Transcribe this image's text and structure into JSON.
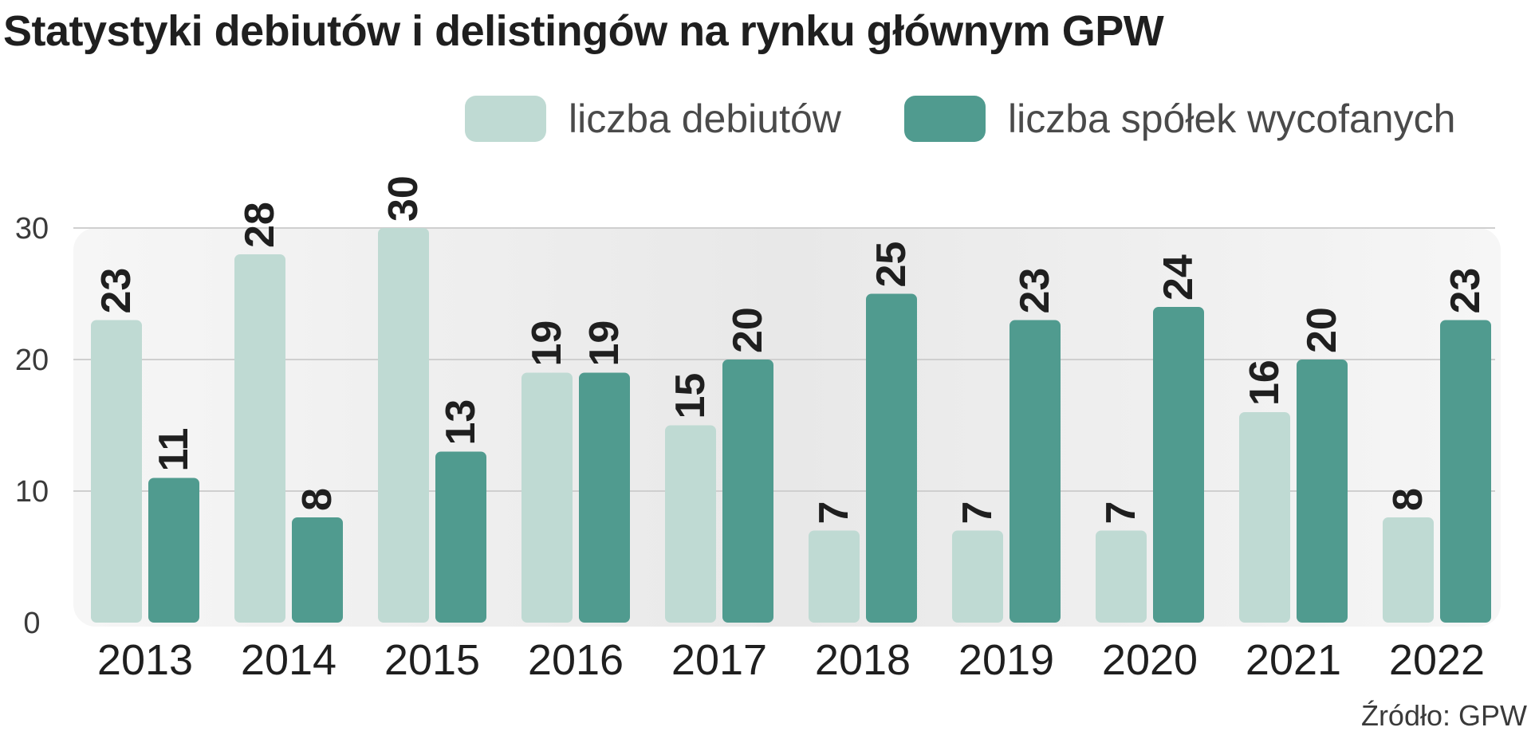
{
  "chart_data": {
    "type": "bar",
    "title": "Statystyki debiutów i delistingów  na rynku głównym GPW",
    "categories": [
      "2013",
      "2014",
      "2015",
      "2016",
      "2017",
      "2018",
      "2019",
      "2020",
      "2021",
      "2022"
    ],
    "series": [
      {
        "name": "liczba debiutów",
        "values": [
          23,
          28,
          30,
          19,
          15,
          7,
          7,
          7,
          16,
          8
        ],
        "color": "#bfdad3"
      },
      {
        "name": "liczba spółek wycofanych",
        "values": [
          11,
          8,
          13,
          19,
          20,
          25,
          23,
          24,
          20,
          23
        ],
        "color": "#509b8f"
      }
    ],
    "ylim": [
      0,
      30
    ],
    "yticks": [
      "0",
      "10",
      "20",
      "30"
    ],
    "grid": true,
    "legend": "top-right",
    "source": "Źródło: GPW",
    "background_color": "#ececec",
    "gridline_color": "#cfcfcf"
  }
}
